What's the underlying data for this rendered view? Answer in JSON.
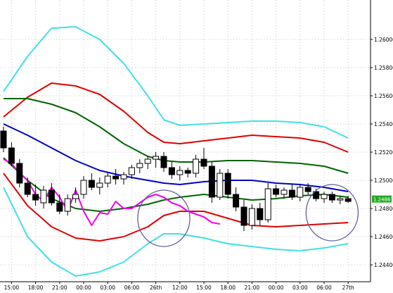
{
  "chart_data": {
    "type": "candlestick",
    "y_ticks": [
      "1.26000",
      "1.25800",
      "1.25600",
      "1.25400",
      "1.25200",
      "1.25000",
      "1.24800",
      "1.24600",
      "1.24400"
    ],
    "y_tick_values": [
      1.26,
      1.258,
      1.256,
      1.254,
      1.252,
      1.25,
      1.248,
      1.246,
      1.244
    ],
    "ylim": [
      1.2428,
      1.2628
    ],
    "x_ticks": [
      "15:00",
      "18:00",
      "21:00",
      "00:00",
      "03:00",
      "06:00",
      "26th",
      "12:00",
      "15:00",
      "18:00",
      "21:00",
      "00:00",
      "03:00",
      "06:00",
      "27th"
    ],
    "x_tick_bars": [
      2,
      8,
      14,
      20,
      26,
      32,
      38,
      44,
      50,
      56,
      62,
      68,
      74,
      80,
      86
    ],
    "n_bars": 87,
    "current_price_label": "1.24867",
    "current_price": 1.24867,
    "colors": {
      "bull": "#ffffff",
      "bear": "#000000",
      "bollinger_outer": "#40e0e8",
      "bollinger_inner": "#e00000",
      "ma_green": "#006400",
      "ma_blue": "#0000cc",
      "ma_magenta": "#ee00ee",
      "ellipse": "#6060a0",
      "price_label_bg": "#22aa22"
    },
    "candles": [
      [
        0,
        1.2535,
        1.2538,
        1.252,
        1.2523
      ],
      [
        2,
        1.2523,
        1.2527,
        1.251,
        1.2512
      ],
      [
        4,
        1.2512,
        1.2515,
        1.2495,
        1.2498
      ],
      [
        6,
        1.2498,
        1.2502,
        1.2488,
        1.249
      ],
      [
        8,
        1.249,
        1.2497,
        1.2482,
        1.2486
      ],
      [
        10,
        1.2484,
        1.2496,
        1.248,
        1.2493
      ],
      [
        12,
        1.2493,
        1.2498,
        1.2482,
        1.2484
      ],
      [
        14,
        1.2484,
        1.249,
        1.2476,
        1.2478
      ],
      [
        16,
        1.2478,
        1.249,
        1.2475,
        1.2487
      ],
      [
        18,
        1.2487,
        1.2495,
        1.2484,
        1.249
      ],
      [
        20,
        1.249,
        1.2503,
        1.2487,
        1.25
      ],
      [
        22,
        1.25,
        1.2505,
        1.2493,
        1.2495
      ],
      [
        24,
        1.2495,
        1.2502,
        1.249,
        1.2498
      ],
      [
        26,
        1.2498,
        1.2506,
        1.2495,
        1.2503
      ],
      [
        28,
        1.2503,
        1.2508,
        1.2497,
        1.2501
      ],
      [
        30,
        1.2501,
        1.2506,
        1.2497,
        1.2504
      ],
      [
        32,
        1.2504,
        1.2511,
        1.2501,
        1.2509
      ],
      [
        34,
        1.2509,
        1.2515,
        1.2505,
        1.2512
      ],
      [
        36,
        1.2512,
        1.2517,
        1.2508,
        1.2515
      ],
      [
        38,
        1.2515,
        1.252,
        1.2509,
        1.2517
      ],
      [
        40,
        1.2517,
        1.252,
        1.2506,
        1.2509
      ],
      [
        42,
        1.2509,
        1.2513,
        1.2501,
        1.2504
      ],
      [
        44,
        1.2504,
        1.251,
        1.25,
        1.2507
      ],
      [
        46,
        1.2507,
        1.2509,
        1.2502,
        1.2505
      ],
      [
        48,
        1.2505,
        1.2518,
        1.2502,
        1.2515
      ],
      [
        50,
        1.2515,
        1.2523,
        1.2508,
        1.251
      ],
      [
        52,
        1.251,
        1.2513,
        1.2484,
        1.2488
      ],
      [
        54,
        1.2488,
        1.2508,
        1.2486,
        1.2505
      ],
      [
        56,
        1.2505,
        1.2508,
        1.2487,
        1.249
      ],
      [
        58,
        1.249,
        1.2495,
        1.2478,
        1.2481
      ],
      [
        60,
        1.2481,
        1.2486,
        1.2464,
        1.2468
      ],
      [
        62,
        1.2468,
        1.2483,
        1.2465,
        1.248
      ],
      [
        64,
        1.248,
        1.2484,
        1.2468,
        1.2472
      ],
      [
        66,
        1.2472,
        1.2498,
        1.247,
        1.2494
      ],
      [
        68,
        1.2494,
        1.2497,
        1.2488,
        1.249
      ],
      [
        70,
        1.249,
        1.2495,
        1.2487,
        1.2493
      ],
      [
        72,
        1.2493,
        1.2497,
        1.2486,
        1.2488
      ],
      [
        74,
        1.2488,
        1.2497,
        1.2485,
        1.2495
      ],
      [
        76,
        1.2495,
        1.2498,
        1.249,
        1.2492
      ],
      [
        78,
        1.2492,
        1.2494,
        1.2485,
        1.2487
      ],
      [
        80,
        1.2487,
        1.2492,
        1.2484,
        1.249
      ],
      [
        82,
        1.249,
        1.2492,
        1.2484,
        1.2486
      ],
      [
        84,
        1.2486,
        1.2489,
        1.2483,
        1.2487
      ],
      [
        86,
        1.2487,
        1.2489,
        1.2484,
        1.2485
      ]
    ],
    "series": [
      {
        "color": "#40e0e8",
        "points": [
          [
            0,
            1.2563
          ],
          [
            6,
            1.2588
          ],
          [
            12,
            1.2608
          ],
          [
            18,
            1.2609
          ],
          [
            24,
            1.26
          ],
          [
            30,
            1.2583
          ],
          [
            36,
            1.256
          ],
          [
            40,
            1.2543
          ],
          [
            44,
            1.2539
          ],
          [
            50,
            1.254
          ],
          [
            56,
            1.2541
          ],
          [
            62,
            1.2542
          ],
          [
            68,
            1.2542
          ],
          [
            74,
            1.2541
          ],
          [
            80,
            1.2538
          ],
          [
            86,
            1.253
          ]
        ]
      },
      {
        "color": "#e00000",
        "points": [
          [
            0,
            1.2545
          ],
          [
            6,
            1.2559
          ],
          [
            12,
            1.2569
          ],
          [
            18,
            1.2567
          ],
          [
            24,
            1.2561
          ],
          [
            30,
            1.2549
          ],
          [
            36,
            1.2534
          ],
          [
            40,
            1.2527
          ],
          [
            44,
            1.2526
          ],
          [
            50,
            1.2528
          ],
          [
            56,
            1.253
          ],
          [
            62,
            1.2532
          ],
          [
            68,
            1.2531
          ],
          [
            74,
            1.253
          ],
          [
            80,
            1.2527
          ],
          [
            86,
            1.252
          ]
        ]
      },
      {
        "color": "#006400",
        "points": [
          [
            0,
            1.2558
          ],
          [
            6,
            1.2558
          ],
          [
            12,
            1.2554
          ],
          [
            18,
            1.2548
          ],
          [
            24,
            1.2538
          ],
          [
            30,
            1.2526
          ],
          [
            36,
            1.2517
          ],
          [
            40,
            1.2514
          ],
          [
            44,
            1.2513
          ],
          [
            50,
            1.2513
          ],
          [
            56,
            1.2514
          ],
          [
            62,
            1.2514
          ],
          [
            68,
            1.2513
          ],
          [
            74,
            1.2512
          ],
          [
            80,
            1.251
          ],
          [
            86,
            1.2505
          ]
        ]
      },
      {
        "color": "#0000cc",
        "points": [
          [
            0,
            1.254
          ],
          [
            6,
            1.2532
          ],
          [
            12,
            1.2523
          ],
          [
            18,
            1.2514
          ],
          [
            24,
            1.2507
          ],
          [
            30,
            1.2503
          ],
          [
            36,
            1.25
          ],
          [
            40,
            1.2498
          ],
          [
            44,
            1.2497
          ],
          [
            50,
            1.2499
          ],
          [
            56,
            1.25
          ],
          [
            62,
            1.25
          ],
          [
            68,
            1.2498
          ],
          [
            74,
            1.2497
          ],
          [
            80,
            1.2495
          ],
          [
            86,
            1.2492
          ]
        ]
      },
      {
        "color": "#006400",
        "points": [
          [
            0,
            1.2516
          ],
          [
            6,
            1.25
          ],
          [
            12,
            1.2487
          ],
          [
            18,
            1.248
          ],
          [
            24,
            1.2478
          ],
          [
            30,
            1.248
          ],
          [
            36,
            1.2483
          ],
          [
            40,
            1.2486
          ],
          [
            44,
            1.2488
          ],
          [
            50,
            1.249
          ],
          [
            56,
            1.2488
          ],
          [
            62,
            1.2486
          ],
          [
            68,
            1.2487
          ],
          [
            74,
            1.2489
          ],
          [
            80,
            1.249
          ],
          [
            86,
            1.2488
          ]
        ]
      },
      {
        "color": "#e00000",
        "points": [
          [
            0,
            1.2505
          ],
          [
            6,
            1.2482
          ],
          [
            12,
            1.2467
          ],
          [
            18,
            1.2459
          ],
          [
            24,
            1.2457
          ],
          [
            30,
            1.246
          ],
          [
            36,
            1.2467
          ],
          [
            40,
            1.2475
          ],
          [
            44,
            1.2478
          ],
          [
            50,
            1.2478
          ],
          [
            56,
            1.2473
          ],
          [
            62,
            1.2468
          ],
          [
            68,
            1.2467
          ],
          [
            74,
            1.2468
          ],
          [
            80,
            1.2469
          ],
          [
            86,
            1.247
          ]
        ]
      },
      {
        "color": "#40e0e8",
        "points": [
          [
            0,
            1.2495
          ],
          [
            6,
            1.246
          ],
          [
            12,
            1.2442
          ],
          [
            18,
            1.2432
          ],
          [
            24,
            1.2435
          ],
          [
            30,
            1.2442
          ],
          [
            36,
            1.2455
          ],
          [
            40,
            1.2462
          ],
          [
            44,
            1.2462
          ],
          [
            50,
            1.2459
          ],
          [
            56,
            1.2455
          ],
          [
            62,
            1.2453
          ],
          [
            68,
            1.2451
          ],
          [
            74,
            1.245
          ],
          [
            80,
            1.2452
          ],
          [
            86,
            1.2455
          ]
        ]
      },
      {
        "color": "#ee00ee",
        "points": [
          [
            0,
            1.2515
          ],
          [
            2,
            1.2512
          ],
          [
            4,
            1.2505
          ],
          [
            6,
            1.25
          ],
          [
            8,
            1.249
          ],
          [
            10,
            1.2485
          ],
          [
            12,
            1.2495
          ],
          [
            14,
            1.2488
          ],
          [
            16,
            1.2478
          ],
          [
            18,
            1.2493
          ],
          [
            20,
            1.2478
          ],
          [
            22,
            1.2468
          ],
          [
            24,
            1.2477
          ],
          [
            26,
            1.2476
          ],
          [
            28,
            1.2485
          ],
          [
            30,
            1.248
          ],
          [
            32,
            1.248
          ],
          [
            34,
            1.2484
          ],
          [
            36,
            1.2488
          ],
          [
            38,
            1.249
          ],
          [
            40,
            1.2488
          ],
          [
            42,
            1.2484
          ],
          [
            44,
            1.2482
          ],
          [
            46,
            1.2478
          ],
          [
            48,
            1.2476
          ],
          [
            50,
            1.2474
          ],
          [
            52,
            1.247
          ],
          [
            54,
            1.2469
          ]
        ]
      }
    ],
    "ellipses": [
      {
        "cx_bar": 40,
        "cy": 1.2473,
        "rx_bars": 6.5,
        "ry": 0.002
      },
      {
        "cx_bar": 82,
        "cy": 1.2477,
        "rx_bars": 6.5,
        "ry": 0.002
      }
    ]
  }
}
